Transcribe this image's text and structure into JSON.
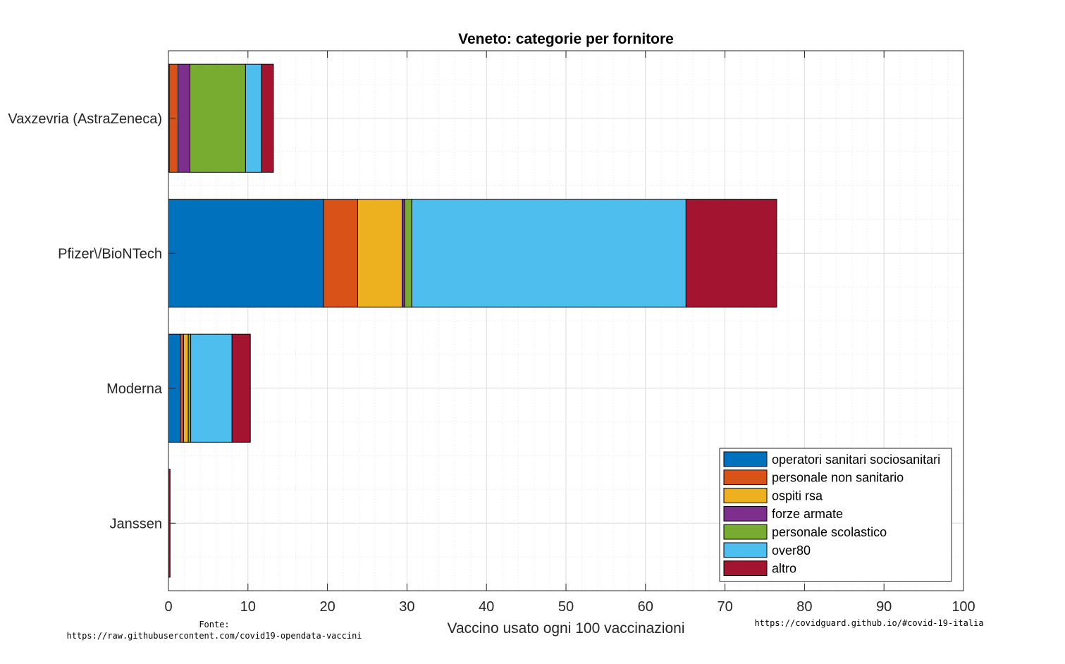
{
  "chart_data": {
    "type": "bar",
    "orientation": "horizontal",
    "stacked": true,
    "title": "Veneto: categorie per fornitore",
    "xlabel": "Vaccino usato ogni 100 vaccinazioni",
    "xlim": [
      0,
      100
    ],
    "xticks": [
      "0",
      "10",
      "20",
      "30",
      "40",
      "50",
      "60",
      "70",
      "80",
      "90",
      "100"
    ],
    "grid": "major and minor",
    "legend_position": "bottom-right",
    "categories": [
      "Vaxzevria (AstraZeneca)",
      "Pfizer\\/BioNTech",
      "Moderna",
      "Janssen"
    ],
    "series": [
      {
        "name": "operatori sanitari sociosanitari",
        "color": "#0072BD",
        "values": [
          0.1,
          19.5,
          1.5,
          0.0
        ]
      },
      {
        "name": "personale non sanitario",
        "color": "#D95319",
        "values": [
          1.1,
          4.3,
          0.4,
          0.0
        ]
      },
      {
        "name": "ospiti rsa",
        "color": "#EDB120",
        "values": [
          0.0,
          5.6,
          0.6,
          0.0
        ]
      },
      {
        "name": "forze armate",
        "color": "#7E2F8E",
        "values": [
          1.5,
          0.3,
          0.0,
          0.0
        ]
      },
      {
        "name": "personale scolastico",
        "color": "#77AC30",
        "values": [
          7.0,
          0.9,
          0.3,
          0.0
        ]
      },
      {
        "name": "over80",
        "color": "#4DBEEE",
        "values": [
          2.0,
          34.5,
          5.2,
          0.0
        ]
      },
      {
        "name": "altro",
        "color": "#A2142F",
        "values": [
          1.5,
          11.4,
          2.3,
          0.2
        ]
      }
    ]
  },
  "footer": {
    "source_label": "Fonte:",
    "source_url": "https://raw.githubusercontent.com/covid19-opendata-vaccini",
    "site": "https://covidguard.github.io/#covid-19-italia"
  }
}
